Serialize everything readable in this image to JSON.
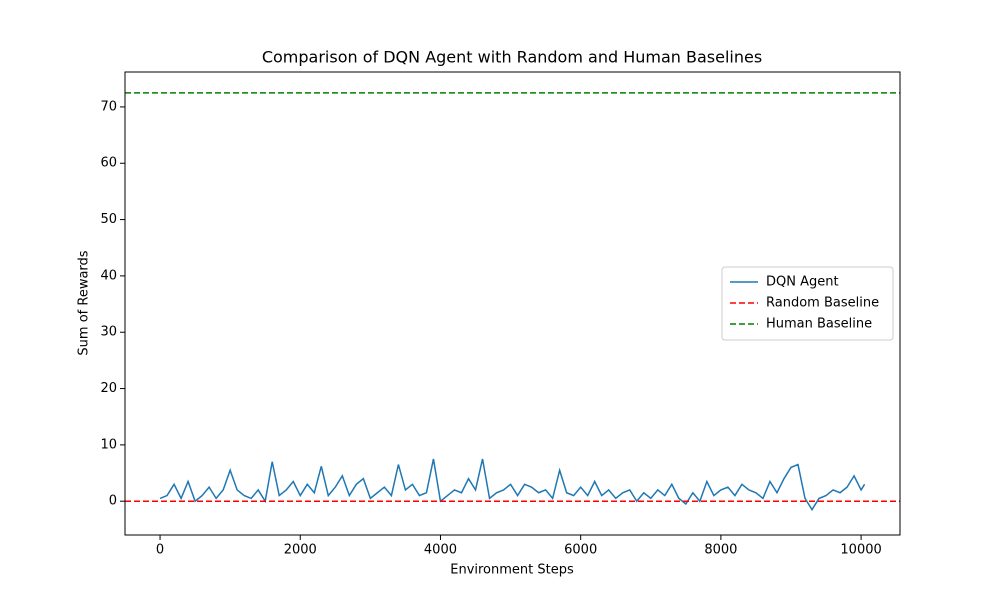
{
  "chart_data": {
    "type": "line",
    "title": "Comparison of DQN Agent with Random and Human Baselines",
    "x_label": "Environment Steps",
    "y_label": "Sum of Rewards",
    "x": [
      0,
      100,
      200,
      300,
      400,
      500,
      600,
      700,
      800,
      900,
      1000,
      1100,
      1200,
      1300,
      1400,
      1500,
      1600,
      1700,
      1800,
      1900,
      2000,
      2100,
      2200,
      2300,
      2400,
      2500,
      2600,
      2700,
      2800,
      2900,
      3000,
      3100,
      3200,
      3300,
      3400,
      3500,
      3600,
      3700,
      3800,
      3900,
      4000,
      4100,
      4200,
      4300,
      4400,
      4500,
      4600,
      4700,
      4800,
      4900,
      5000,
      5100,
      5200,
      5300,
      5400,
      5500,
      5600,
      5700,
      5800,
      5900,
      6000,
      6100,
      6200,
      6300,
      6400,
      6500,
      6600,
      6700,
      6800,
      6900,
      7000,
      7100,
      7200,
      7300,
      7400,
      7500,
      7600,
      7700,
      7800,
      7900,
      8000,
      8100,
      8200,
      8300,
      8400,
      8500,
      8600,
      8700,
      8800,
      8900,
      9000,
      9100,
      9200,
      9300,
      9400,
      9500,
      9600,
      9700,
      9800,
      9900,
      10000,
      10050
    ],
    "series": [
      {
        "name": "DQN Agent",
        "color": "#1f77b4",
        "values": [
          0.5,
          1,
          3,
          0.5,
          3.5,
          0,
          1,
          2.5,
          0.5,
          2,
          5.5,
          2,
          1,
          0.5,
          2,
          0,
          7,
          1,
          2,
          3.5,
          1,
          3,
          1.5,
          6.2,
          1,
          2.5,
          4.5,
          1,
          3,
          4,
          0.5,
          1.5,
          2.5,
          1,
          6.5,
          2,
          3,
          1,
          1.5,
          7.5,
          0,
          1,
          2,
          1.5,
          4,
          2,
          7.5,
          0.5,
          1.5,
          2,
          3,
          1,
          3,
          2.5,
          1.5,
          2,
          0.5,
          5.5,
          1.5,
          1,
          2.5,
          1,
          3.5,
          1,
          2,
          0.5,
          1.5,
          2,
          0,
          1.5,
          0.5,
          2,
          1,
          3,
          0.5,
          -0.5,
          1.5,
          0,
          3.5,
          1,
          2,
          2.5,
          1,
          3,
          2,
          1.5,
          0.5,
          3.5,
          1.5,
          4,
          6,
          6.5,
          0.5,
          -1.5,
          0.5,
          1,
          2,
          1.5,
          2.5,
          4.5,
          2,
          3
        ]
      }
    ],
    "baselines": [
      {
        "name": "Random Baseline",
        "color": "#ff0000",
        "value": 0
      },
      {
        "name": "Human Baseline",
        "color": "#008000",
        "value": 72.5
      }
    ],
    "xlim": [
      -500,
      10555
    ],
    "ylim": [
      -6.0,
      76.2
    ],
    "xticks": [
      0,
      2000,
      4000,
      6000,
      8000,
      10000
    ],
    "yticks": [
      0,
      10,
      20,
      30,
      40,
      50,
      60,
      70
    ],
    "legend": "center right"
  }
}
